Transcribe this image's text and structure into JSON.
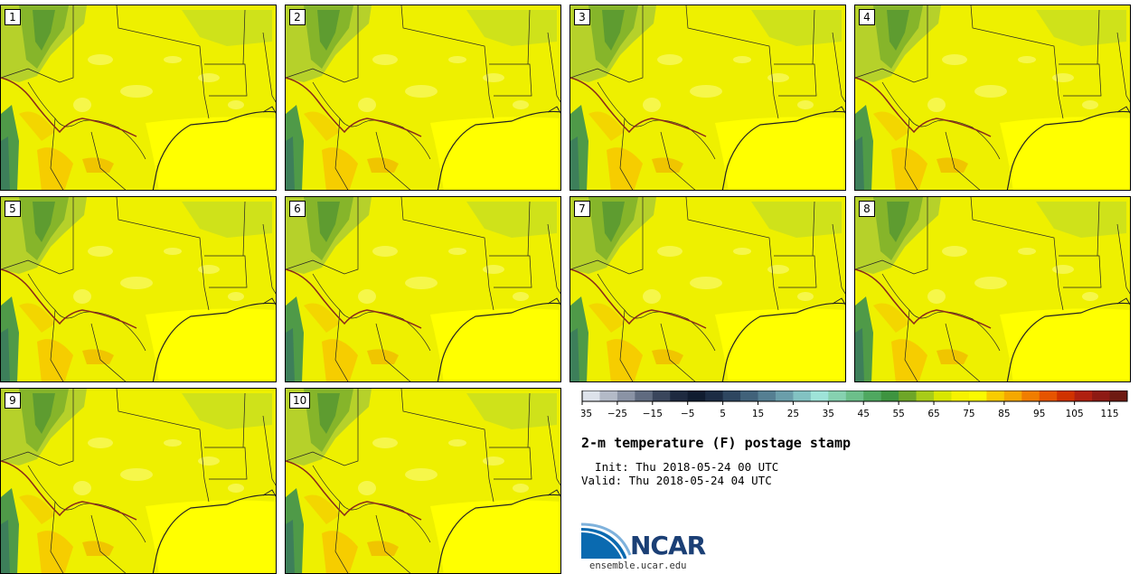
{
  "panels": [
    "1",
    "2",
    "3",
    "4",
    "5",
    "6",
    "7",
    "8",
    "9",
    "10"
  ],
  "colorbar": {
    "tick_labels": [
      "−35",
      "−25",
      "−15",
      "−5",
      "5",
      "15",
      "25",
      "35",
      "45",
      "55",
      "65",
      "75",
      "85",
      "95",
      "105",
      "115"
    ],
    "colors": [
      "#dde2ea",
      "#b3bac7",
      "#8a93a5",
      "#606b80",
      "#3a465c",
      "#1e2a40",
      "#101c30",
      "#1c2c44",
      "#2e4660",
      "#41627a",
      "#557f92",
      "#6a9eaa",
      "#82c2c2",
      "#9ee3d8",
      "#86d1b0",
      "#6cbf8a",
      "#4fa860",
      "#3e9440",
      "#6ea628",
      "#a8cc18",
      "#d8e600",
      "#f6f200",
      "#fafa00",
      "#f8cc00",
      "#f5a800",
      "#f07d00",
      "#e65400",
      "#d03200",
      "#b02010",
      "#8e1a14",
      "#6e1a12"
    ]
  },
  "title": "2-m temperature (F) postage stamp",
  "init": "  Init: Thu 2018-05-24 00 UTC",
  "valid": "Valid: Thu 2018-05-24 04 UTC",
  "logo": {
    "text": "NCAR",
    "site": "ensemble.ucar.edu"
  }
}
